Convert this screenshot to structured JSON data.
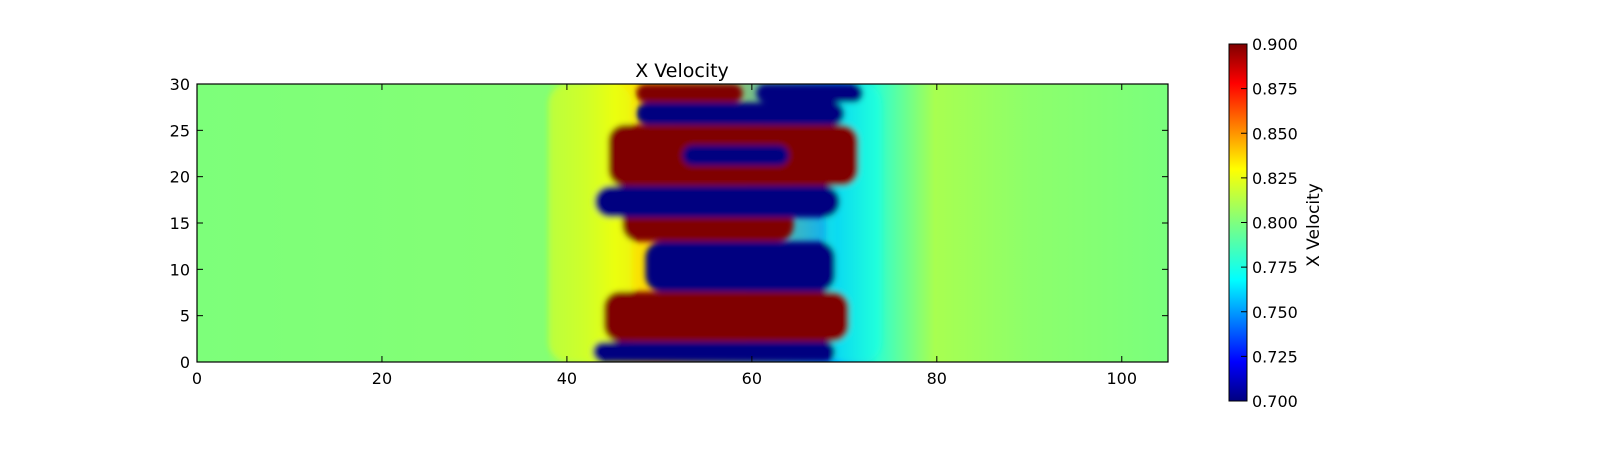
{
  "chart_data": {
    "type": "heatmap",
    "title": "X Velocity",
    "xlabel": "",
    "ylabel": "",
    "xlim": [
      0,
      105
    ],
    "ylim": [
      0,
      30
    ],
    "x_ticks": [
      0,
      20,
      40,
      60,
      80,
      100
    ],
    "y_ticks": [
      0,
      5,
      10,
      15,
      20,
      25,
      30
    ],
    "x_tick_labels": [
      "0",
      "20",
      "40",
      "60",
      "80",
      "100"
    ],
    "y_tick_labels": [
      "0",
      "5",
      "10",
      "15",
      "20",
      "25",
      "30"
    ],
    "grid": false,
    "background_value": 0.8,
    "colorbar": {
      "label": "X Velocity",
      "colormap": "jet",
      "min": 0.7,
      "max": 0.9,
      "ticks": [
        0.7,
        0.725,
        0.75,
        0.775,
        0.8,
        0.825,
        0.85,
        0.875,
        0.9
      ],
      "tick_labels": [
        "0.700",
        "0.725",
        "0.750",
        "0.775",
        "0.800",
        "0.825",
        "0.850",
        "0.875",
        "0.900"
      ]
    },
    "regions": [
      {
        "value": 0.7,
        "x": [
          42.8,
          69.0
        ],
        "y": [
          0,
          2.2
        ]
      },
      {
        "value": 0.9,
        "x": [
          44.0,
          70.5
        ],
        "y": [
          2.2,
          7.6
        ]
      },
      {
        "value": 0.7,
        "x": [
          48.5,
          69.0
        ],
        "y": [
          7.6,
          13.0
        ]
      },
      {
        "value": 0.9,
        "x": [
          46.0,
          64.5
        ],
        "y": [
          13.0,
          17.0
        ]
      },
      {
        "value": 0.7,
        "x": [
          43.0,
          69.5
        ],
        "y": [
          15.6,
          19.0
        ]
      },
      {
        "value": 0.9,
        "x": [
          44.5,
          71.5
        ],
        "y": [
          19.0,
          25.6
        ]
      },
      {
        "value": 0.7,
        "x": [
          52.5,
          64.0
        ],
        "y": [
          21.2,
          23.4
        ]
      },
      {
        "value": 0.7,
        "x": [
          47.5,
          70.0
        ],
        "y": [
          25.6,
          28.0
        ]
      },
      {
        "value": 0.9,
        "x": [
          47.5,
          59.0
        ],
        "y": [
          28.0,
          30.0
        ]
      },
      {
        "value": 0.7,
        "x": [
          60.5,
          72.0
        ],
        "y": [
          28.0,
          30.0
        ]
      },
      {
        "value": 0.82,
        "x": [
          38.0,
          47.0
        ],
        "y": [
          0,
          30
        ]
      },
      {
        "value": 0.78,
        "x": [
          68.0,
          74.0
        ],
        "y": [
          0,
          30
        ]
      }
    ]
  }
}
